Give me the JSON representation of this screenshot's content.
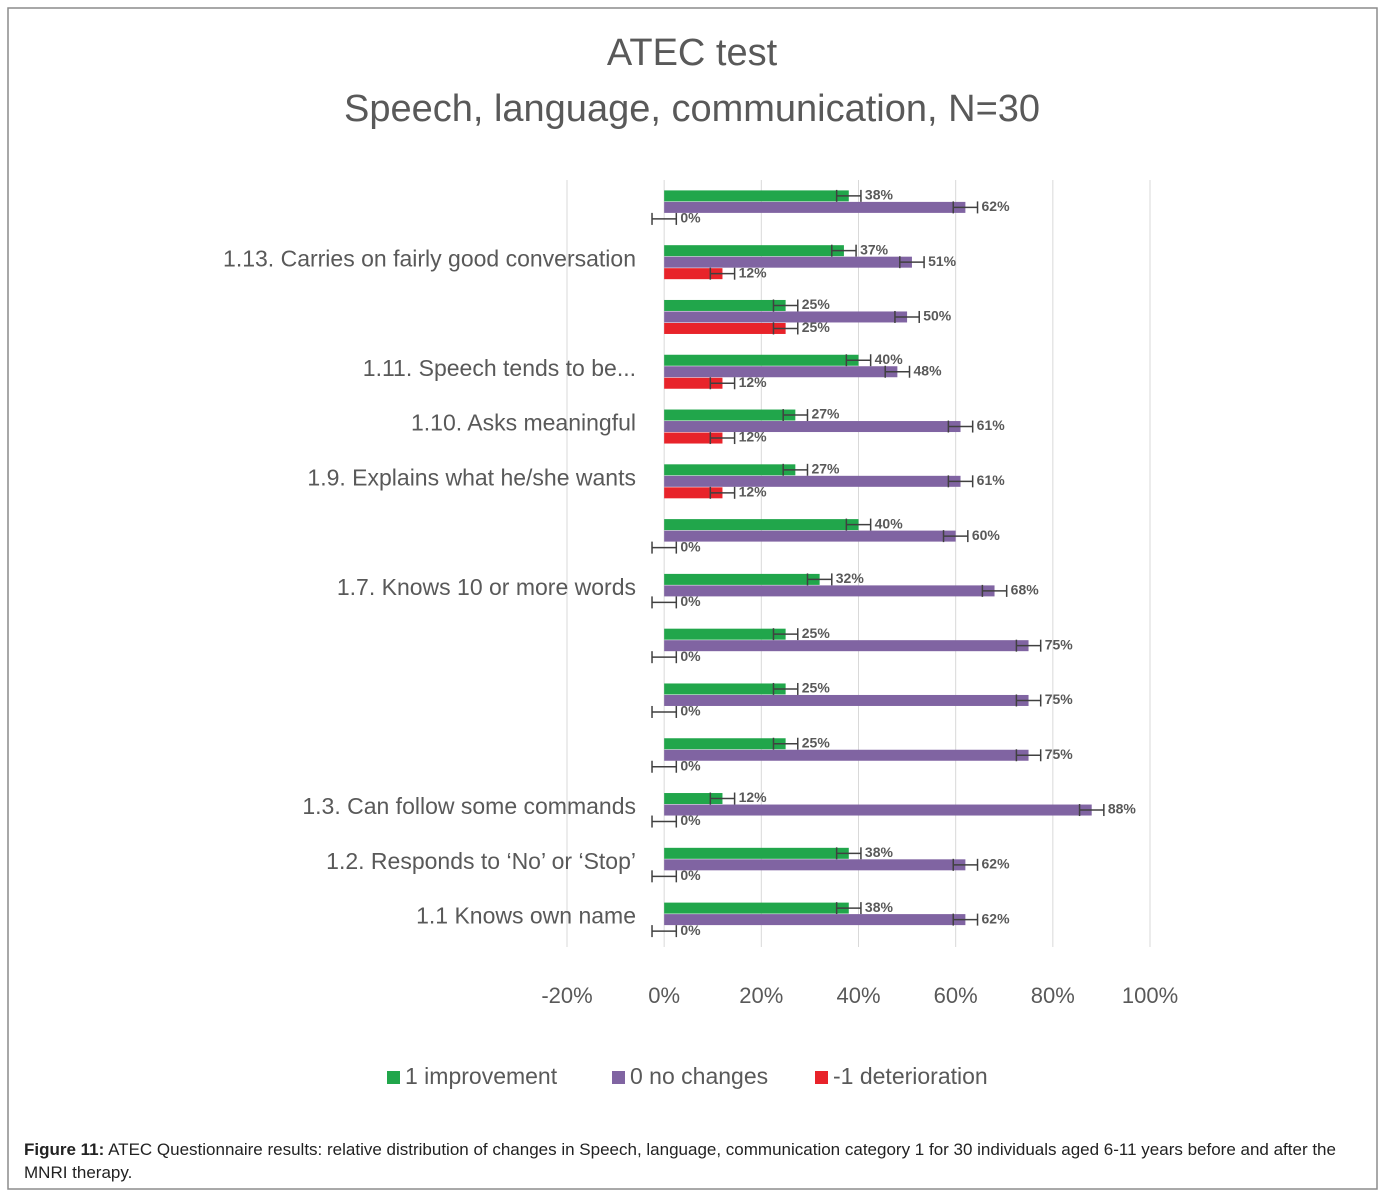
{
  "chart_data": {
    "type": "bar",
    "orientation": "horizontal",
    "title": "ATEC test",
    "subtitle": "Speech, language, communication, N=30",
    "categories": [
      null,
      "1.13. Carries on fairly good conversation",
      null,
      "1.11. Speech tends to be...",
      "1.10. Asks meaningful",
      "1.9. Explains what he/she wants",
      null,
      "1.7. Knows 10 or more words",
      null,
      null,
      null,
      "1.3. Can follow some commands",
      "1.2. Responds to ‘No’ or ‘Stop’",
      "1.1 Knows own name"
    ],
    "series": [
      {
        "name": "1 improvement",
        "color": "#21a64b",
        "values": [
          38,
          37,
          25,
          40,
          27,
          27,
          40,
          32,
          25,
          25,
          25,
          12,
          38,
          38
        ],
        "value_labels": [
          "38%",
          "37%",
          "25%",
          "40%",
          "27%",
          "27%",
          "40%",
          "32%",
          "25%",
          "25%",
          "25%",
          "12%",
          "38%",
          "38%"
        ],
        "errors": [
          2.5,
          2.5,
          2.5,
          2.5,
          2.5,
          2.5,
          2.5,
          2.5,
          2.5,
          2.5,
          2.5,
          2.5,
          2.5,
          2.5
        ]
      },
      {
        "name": "0 no changes",
        "color": "#8064a2",
        "values": [
          62,
          51,
          50,
          48,
          61,
          61,
          60,
          68,
          75,
          75,
          75,
          88,
          62,
          62
        ],
        "value_labels": [
          "62%",
          "51%",
          "50%",
          "48%",
          "61%",
          "61%",
          "60%",
          "68%",
          "75%",
          "75%",
          "75%",
          "88%",
          "62%",
          "62%"
        ],
        "errors": [
          2.5,
          2.5,
          2.5,
          2.5,
          2.5,
          2.5,
          2.5,
          2.5,
          2.5,
          2.5,
          2.5,
          2.5,
          2.5,
          2.5
        ]
      },
      {
        "name": "-1 deterioration",
        "color": "#e8232a",
        "values": [
          0,
          12,
          25,
          12,
          12,
          12,
          0,
          0,
          0,
          0,
          0,
          0,
          0,
          0
        ],
        "value_labels": [
          "0%",
          "12%",
          "25%",
          "12%",
          "12%",
          "12%",
          "0%",
          "0%",
          "0%",
          "0%",
          "0%",
          "0%",
          "0%",
          "0%"
        ],
        "errors": [
          2.5,
          2.5,
          2.5,
          2.5,
          2.5,
          2.5,
          2.5,
          2.5,
          2.5,
          2.5,
          2.5,
          2.5,
          2.5,
          2.5
        ]
      }
    ],
    "xlim": [
      -20,
      100
    ],
    "xticks": [
      {
        "value": -20,
        "label": "-20%"
      },
      {
        "value": 0,
        "label": "0%"
      },
      {
        "value": 20,
        "label": "20%"
      },
      {
        "value": 40,
        "label": "40%"
      },
      {
        "value": 60,
        "label": "60%"
      },
      {
        "value": 80,
        "label": "80%"
      },
      {
        "value": 100,
        "label": "100%"
      }
    ],
    "grid": true,
    "legend": "bottom"
  },
  "caption": {
    "label": "Figure 11:",
    "text": "ATEC Questionnaire results: relative distribution of changes in Speech, language, communication category 1 for 30 individuals aged 6-11 years before and after the MNRI therapy."
  }
}
